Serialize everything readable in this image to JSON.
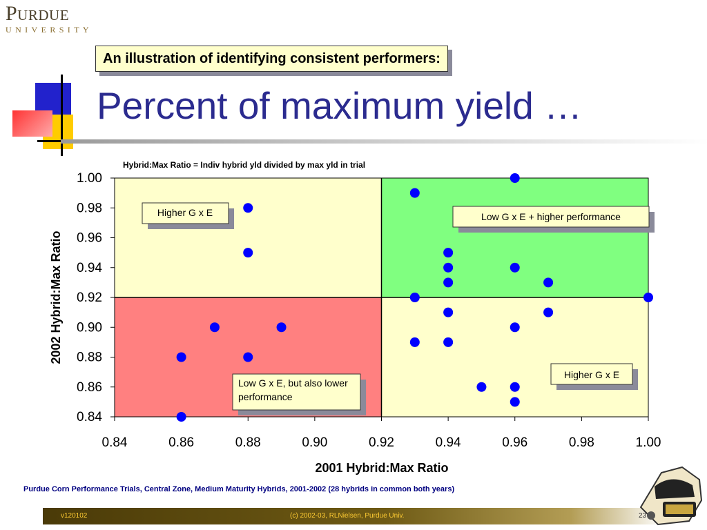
{
  "logo": {
    "word": "Purdue",
    "sub": "UNIVERSITY"
  },
  "callout_title": "An illustration of identifying consistent performers:",
  "heading": "Percent of maximum yield …",
  "chart_data": {
    "type": "scatter",
    "title": "Hybrid:Max Ratio = Indiv hybrid yld divided by max yld in trial",
    "xlabel": "2001 Hybrid:Max Ratio",
    "ylabel": "2002 Hybrid:Max Ratio",
    "xlim": [
      0.84,
      1.0
    ],
    "ylim": [
      0.84,
      1.0
    ],
    "xticks": [
      "0.84",
      "0.86",
      "0.88",
      "0.90",
      "0.92",
      "0.94",
      "0.96",
      "0.98",
      "1.00"
    ],
    "yticks": [
      "0.84",
      "0.86",
      "0.88",
      "0.90",
      "0.92",
      "0.94",
      "0.96",
      "0.98",
      "1.00"
    ],
    "grid": false,
    "legend": "none",
    "threshold": {
      "x": 0.92,
      "y": 0.92
    },
    "quadrants": [
      {
        "name": "upper-left",
        "color": "#ffffcc"
      },
      {
        "name": "upper-right",
        "color": "#80ff80"
      },
      {
        "name": "lower-left",
        "color": "#ff8080"
      },
      {
        "name": "lower-right",
        "color": "#ffffcc"
      }
    ],
    "marker_color": "#0000ff",
    "points": [
      {
        "x": 0.96,
        "y": 1.0
      },
      {
        "x": 0.93,
        "y": 0.99
      },
      {
        "x": 0.88,
        "y": 0.98
      },
      {
        "x": 0.88,
        "y": 0.95
      },
      {
        "x": 0.94,
        "y": 0.95
      },
      {
        "x": 0.94,
        "y": 0.94
      },
      {
        "x": 0.96,
        "y": 0.94
      },
      {
        "x": 0.94,
        "y": 0.93
      },
      {
        "x": 0.97,
        "y": 0.93
      },
      {
        "x": 0.93,
        "y": 0.92
      },
      {
        "x": 1.0,
        "y": 0.92
      },
      {
        "x": 0.94,
        "y": 0.91
      },
      {
        "x": 0.97,
        "y": 0.91
      },
      {
        "x": 0.87,
        "y": 0.9
      },
      {
        "x": 0.89,
        "y": 0.9
      },
      {
        "x": 0.96,
        "y": 0.9
      },
      {
        "x": 0.93,
        "y": 0.89
      },
      {
        "x": 0.94,
        "y": 0.89
      },
      {
        "x": 0.86,
        "y": 0.88
      },
      {
        "x": 0.88,
        "y": 0.88
      },
      {
        "x": 0.95,
        "y": 0.86
      },
      {
        "x": 0.96,
        "y": 0.86
      },
      {
        "x": 0.96,
        "y": 0.85
      },
      {
        "x": 0.86,
        "y": 0.84
      }
    ],
    "annotations": [
      "Higher G x E",
      "Low G x E + higher performance",
      "Higher G x E",
      "Low G x E, but also lower performance"
    ]
  },
  "source_note": "Purdue Corn Performance Trials, Central Zone, Medium Maturity Hybrids, 2001-2002  (28 hybrids in common both years)",
  "footer": {
    "left": "v120102",
    "center": "(c) 2002-03, RLNielsen, Purdue Univ.",
    "right": "23"
  },
  "colors": {
    "heading": "#2b2b8f",
    "callout_bg": "#ffffcc",
    "footer_text": "#ffcc33",
    "source_note": "#000080"
  }
}
